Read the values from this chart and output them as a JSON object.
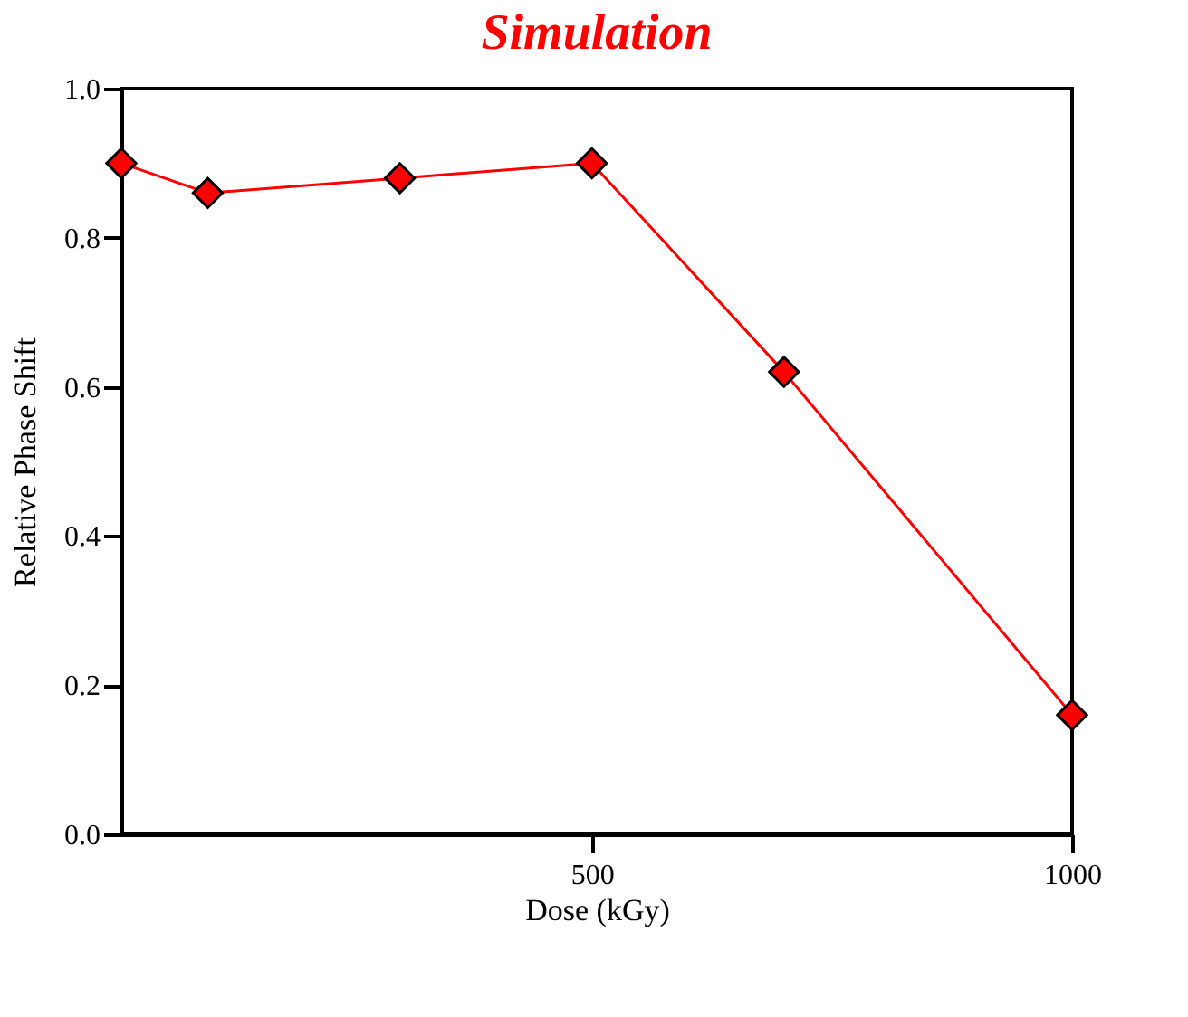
{
  "chart_data": {
    "type": "line",
    "title": "Simulation",
    "xlabel": "Dose (kGy)",
    "ylabel": "Relative Phase Shift",
    "x": [
      10,
      100,
      300,
      500,
      700,
      1000
    ],
    "series": [
      {
        "color": "#ff0000",
        "values": [
          0.9,
          0.86,
          0.88,
          0.9,
          0.62,
          0.16
        ]
      }
    ],
    "xlim": [
      10,
      1000
    ],
    "xticks": [
      500,
      1000
    ],
    "ylim": [
      0,
      1
    ],
    "yticks": [
      {
        "value": 0,
        "label": "0.0"
      },
      {
        "value": 0.2,
        "label": "0.2"
      },
      {
        "value": 0.4,
        "label": "0.4"
      },
      {
        "value": 0.6,
        "label": "0.6"
      },
      {
        "value": 0.8,
        "label": "0.8"
      },
      {
        "value": 1,
        "label": "1.0"
      }
    ],
    "marker": "diamond",
    "line_style": "solid",
    "grid": false
  }
}
